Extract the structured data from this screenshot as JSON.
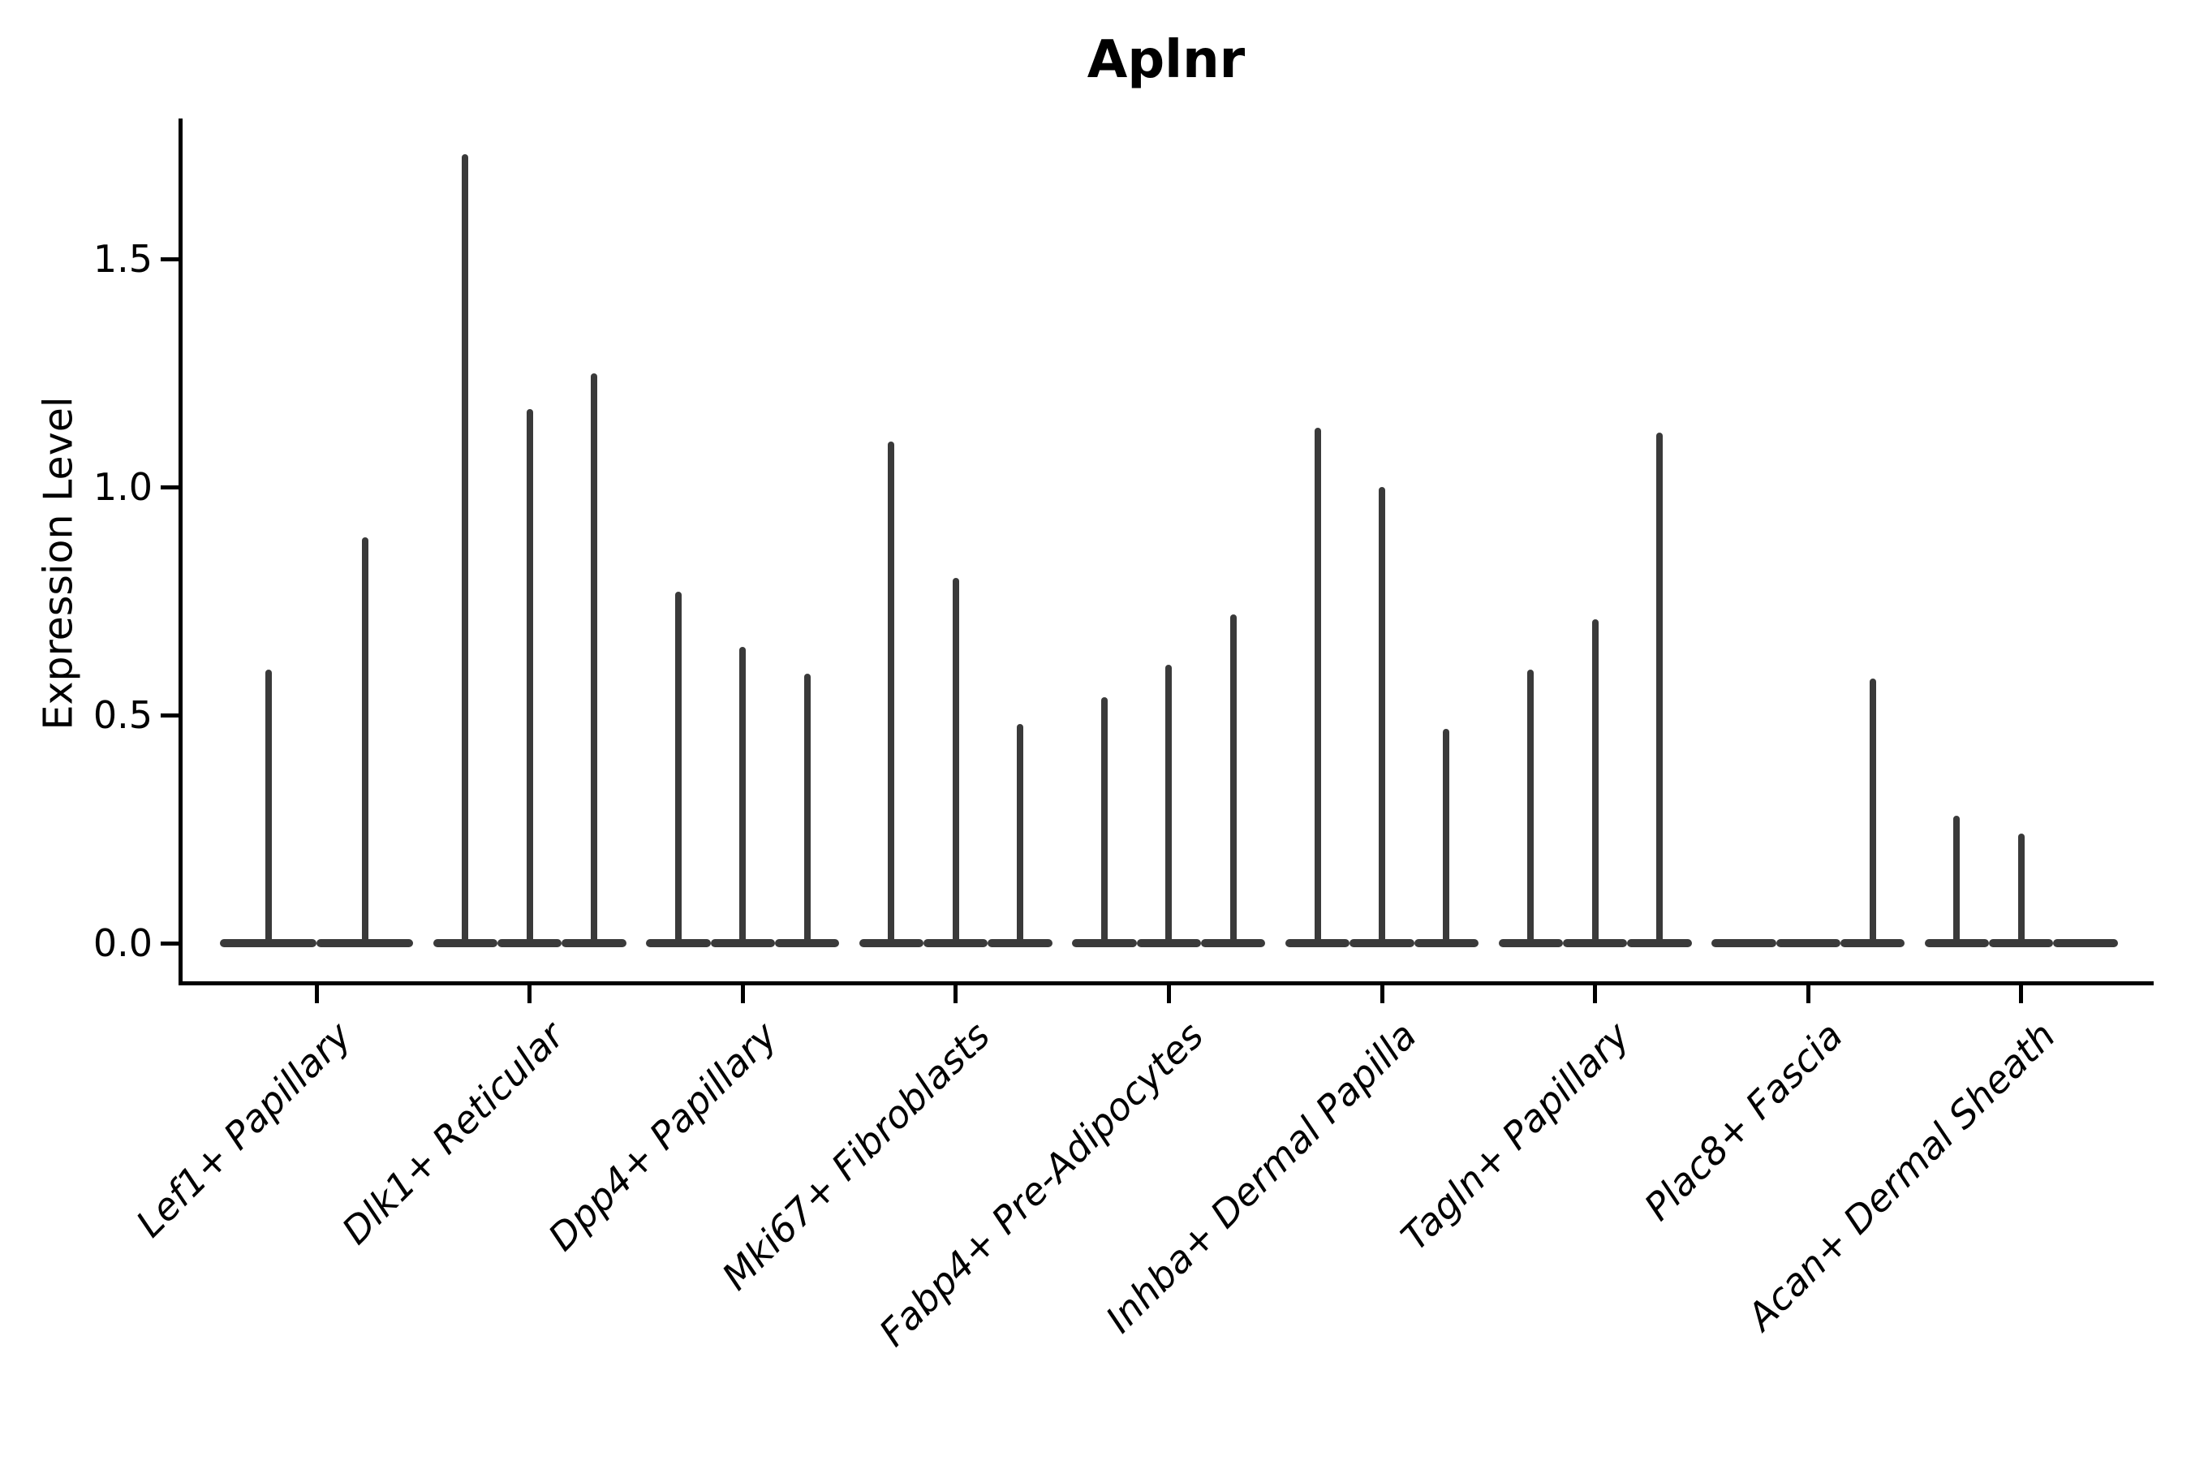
{
  "chart_data": {
    "type": "violin",
    "title": "Aplnr",
    "ylabel": "Expression Level",
    "yticks": [
      0.0,
      0.5,
      1.0,
      1.5
    ],
    "ytick_labels": [
      "0.0",
      "0.5",
      "1.0",
      "1.5"
    ],
    "ylim": [
      -0.09,
      1.81
    ],
    "grid": false,
    "legend": "none",
    "violin_color": "#3a3a3a",
    "axis_color": "#000000",
    "background_color": "#ffffff",
    "categories": [
      "Lef1+ Papillary",
      "Dlk1+ Reticular",
      "Dpp4+ Papillary",
      "Mki67+ Fibroblasts",
      "Fabp4+ Pre-Adipocytes",
      "Inhba+ Dermal Papilla",
      "Tagln+ Papillary",
      "Plac8+ Fascia",
      "Acan+ Dermal Sheath"
    ],
    "groups": [
      {
        "category": "Lef1+ Papillary",
        "violin_maxima": [
          0.6,
          0.89
        ]
      },
      {
        "category": "Dlk1+ Reticular",
        "violin_maxima": [
          1.73,
          1.17,
          1.25
        ]
      },
      {
        "category": "Dpp4+ Papillary",
        "violin_maxima": [
          0.77,
          0.65,
          0.59
        ]
      },
      {
        "category": "Mki67+ Fibroblasts",
        "violin_maxima": [
          1.1,
          0.8,
          0.48
        ]
      },
      {
        "category": "Fabp4+ Pre-Adipocytes",
        "violin_maxima": [
          0.54,
          0.61,
          0.72
        ]
      },
      {
        "category": "Inhba+ Dermal Papilla",
        "violin_maxima": [
          1.13,
          1.0,
          0.47
        ]
      },
      {
        "category": "Tagln+ Papillary",
        "violin_maxima": [
          0.6,
          0.71,
          1.12
        ]
      },
      {
        "category": "Plac8+ Fascia",
        "violin_maxima": [
          0.0,
          0.0,
          0.58
        ]
      },
      {
        "category": "Acan+ Dermal Sheath",
        "violin_maxima": [
          0.28,
          0.24,
          0.0
        ]
      }
    ]
  }
}
